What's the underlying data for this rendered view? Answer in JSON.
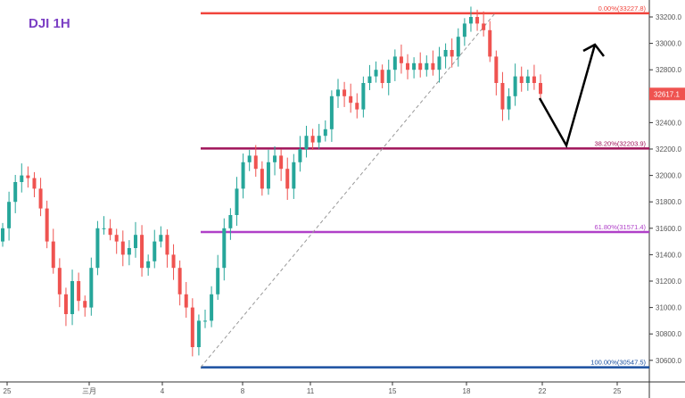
{
  "chart_data": {
    "type": "candlestick",
    "title": "DJI 1H",
    "ylim": [
      30450,
      33300
    ],
    "y_ticks": [
      33200,
      33000,
      32800,
      32400,
      32200,
      32000,
      31800,
      31600,
      31400,
      31200,
      31000,
      30800,
      30600
    ],
    "x_ticks": [
      "25",
      "三月",
      "4",
      "8",
      "11",
      "15",
      "18",
      "22",
      "25"
    ],
    "last_price": "32617.1",
    "closes": [
      31600,
      31800,
      31950,
      32000,
      31980,
      31900,
      31750,
      31500,
      31300,
      31100,
      30950,
      31200,
      31050,
      31000,
      31300,
      31600,
      31600,
      31550,
      31500,
      31400,
      31450,
      31550,
      31300,
      31350,
      31500,
      31550,
      31400,
      31300,
      31100,
      31000,
      30700,
      30900,
      30900,
      31100,
      31300,
      31600,
      31700,
      31900,
      32100,
      32150,
      32050,
      31900,
      32100,
      32150,
      32050,
      31900,
      32100,
      32200,
      32300,
      32250,
      32300,
      32350,
      32600,
      32650,
      32600,
      32550,
      32500,
      32700,
      32750,
      32800,
      32700,
      32800,
      32900,
      32850,
      32800,
      32850,
      32800,
      32850,
      32800,
      32900,
      32950,
      32900,
      33050,
      33150,
      33200,
      33150,
      33100,
      32900,
      32700,
      32500,
      32600,
      32750,
      32700,
      32750,
      32700,
      32617.1
    ],
    "fib_levels": [
      {
        "label": "0.00%(33227.8)",
        "value": 33227.8,
        "color": "#f0443c"
      },
      {
        "label": "38.20%(32203.9)",
        "value": 32203.9,
        "color": "#a0145a"
      },
      {
        "label": "61.80%(31571.4)",
        "value": 31571.4,
        "color": "#b040c8"
      },
      {
        "label": "100.00%(30547.5)",
        "value": 30547.5,
        "color": "#1a4fa0"
      }
    ],
    "colors": {
      "up": "#26a69a",
      "down": "#ef5350"
    }
  }
}
